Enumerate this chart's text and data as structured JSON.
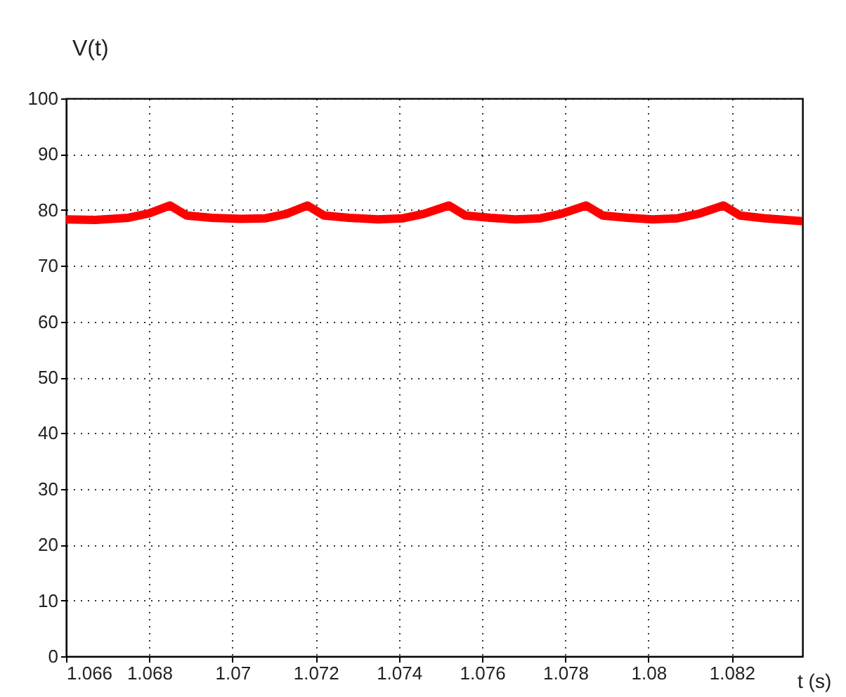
{
  "chart_data": {
    "type": "line",
    "xlabel": "t (s)",
    "ylabel": "V(t)",
    "x": [
      1.066,
      1.0667,
      1.0675,
      1.068,
      1.0685,
      1.0689,
      1.0695,
      1.0702,
      1.0708,
      1.0713,
      1.0718,
      1.0722,
      1.0728,
      1.0735,
      1.0741,
      1.0746,
      1.0752,
      1.0756,
      1.0762,
      1.0768,
      1.0774,
      1.0779,
      1.0785,
      1.0789,
      1.0795,
      1.0801,
      1.0807,
      1.0812,
      1.0818,
      1.0822,
      1.0828,
      1.0837
    ],
    "series": [
      {
        "color": "#ff0000",
        "values": [
          78.3,
          78.2,
          78.6,
          79.4,
          80.8,
          79.0,
          78.6,
          78.4,
          78.5,
          79.3,
          80.8,
          79.0,
          78.6,
          78.3,
          78.5,
          79.3,
          80.8,
          79.0,
          78.6,
          78.3,
          78.5,
          79.3,
          80.8,
          79.0,
          78.6,
          78.3,
          78.5,
          79.3,
          80.8,
          79.0,
          78.5,
          78.0
        ]
      }
    ],
    "xlim": [
      1.066,
      1.0837
    ],
    "xticks": [
      1.066,
      1.068,
      1.07,
      1.072,
      1.074,
      1.076,
      1.078,
      1.08,
      1.082
    ],
    "ylim": [
      0,
      100
    ],
    "yticks": [
      0,
      10,
      20,
      30,
      40,
      50,
      60,
      70,
      80,
      90,
      100
    ],
    "grid": true,
    "legend": false,
    "marker": "none",
    "line_style": "solid"
  }
}
